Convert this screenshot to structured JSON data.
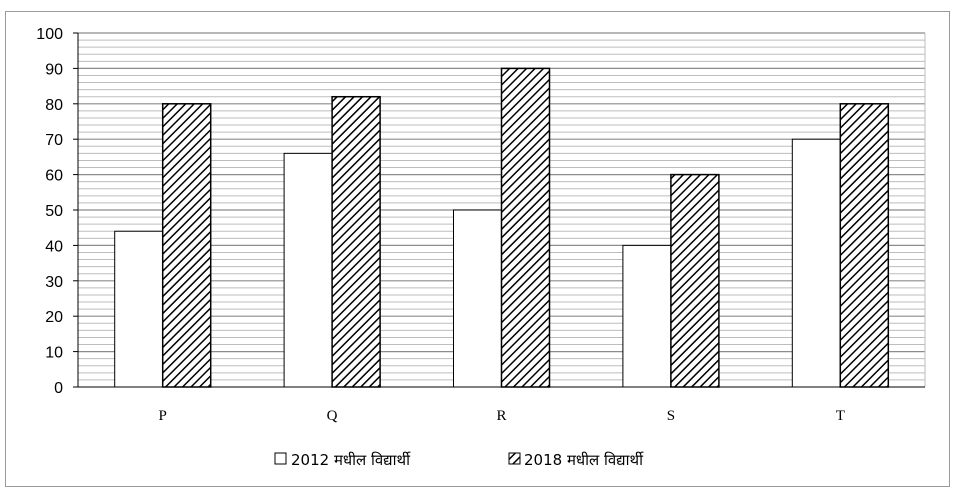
{
  "chart_data": {
    "type": "bar",
    "categories": [
      "P",
      "Q",
      "R",
      "S",
      "T"
    ],
    "series": [
      {
        "name": "2012 मधील विद्यार्थी",
        "values": [
          44,
          66,
          50,
          40,
          70
        ],
        "fill": "plain"
      },
      {
        "name": "2018 मधील विद्यार्थी",
        "values": [
          80,
          82,
          90,
          60,
          80
        ],
        "fill": "hatched"
      }
    ],
    "ylim": [
      0,
      100
    ],
    "yticks": [
      0,
      10,
      20,
      30,
      40,
      50,
      60,
      70,
      80,
      90,
      100
    ],
    "title": "",
    "xlabel": "",
    "ylabel": "",
    "grid": true,
    "legend_position": "bottom-center",
    "colors": {
      "bar_fill": "#ffffff",
      "bar_stroke": "#000000",
      "hatch": "#000000",
      "grid_major": "#8c8c8c",
      "grid_minor": "#bdbdbd"
    }
  }
}
